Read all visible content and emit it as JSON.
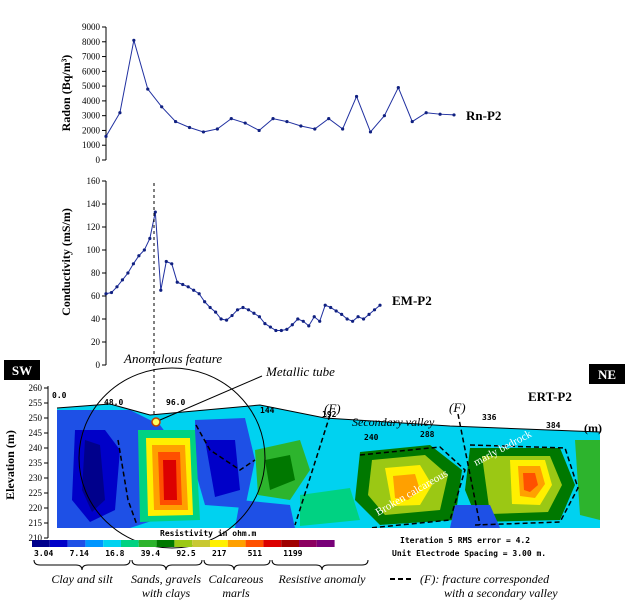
{
  "chart_data": [
    {
      "type": "line",
      "id": "radon",
      "series_label": "Rn-P2",
      "ylabel": "Radon (Bq/m³)",
      "ylim": [
        0,
        9000
      ],
      "yticks": [
        "0",
        "1000",
        "2000",
        "3000",
        "4000",
        "5000",
        "6000",
        "7000",
        "8000",
        "9000"
      ],
      "x": [
        0,
        4,
        8,
        12,
        16,
        20,
        24,
        28,
        32,
        36,
        40,
        44,
        48,
        52,
        56,
        60,
        64,
        68,
        72,
        76,
        80,
        84,
        88,
        92,
        96,
        100
      ],
      "values": [
        1600,
        3200,
        8100,
        4800,
        3600,
        2600,
        2200,
        1900,
        2100,
        2800,
        2500,
        2000,
        2800,
        2600,
        2300,
        2100,
        2800,
        2100,
        4300,
        1900,
        3000,
        4900,
        2600,
        3200,
        3100,
        3050
      ],
      "series": [
        {
          "values": [
            1600,
            3200,
            8100,
            4800,
            3600,
            2600,
            2200,
            1900,
            2100,
            2800,
            2500,
            2000,
            2800,
            2600,
            2300,
            2100,
            2800,
            2100,
            4300,
            1900,
            3000,
            4900,
            2600,
            3200,
            3100,
            3050
          ]
        }
      ]
    },
    {
      "type": "line",
      "id": "conductivity",
      "series_label": "EM-P2",
      "ylabel": "Conductivity  (mS/m)",
      "ylim": [
        0,
        160
      ],
      "yticks": [
        "0",
        "20",
        "40",
        "60",
        "80",
        "100",
        "120",
        "140",
        "160"
      ],
      "x": [
        0,
        4,
        8,
        12,
        16,
        20,
        24,
        28,
        32,
        36,
        40,
        44,
        48,
        52,
        56,
        60,
        64,
        68,
        72,
        76,
        80,
        84,
        88,
        92,
        96,
        100,
        104,
        108,
        112,
        116,
        120,
        124,
        128,
        132,
        136,
        140,
        144,
        148,
        152,
        156,
        160,
        164,
        168,
        172,
        176,
        180,
        184,
        188,
        192,
        196,
        200
      ],
      "values": [
        62,
        63,
        68,
        74,
        80,
        88,
        95,
        100,
        110,
        133,
        65,
        90,
        88,
        72,
        70,
        68,
        65,
        62,
        55,
        50,
        46,
        40,
        39,
        43,
        48,
        50,
        48,
        45,
        42,
        36,
        33,
        30,
        30,
        31,
        35,
        40,
        38,
        34,
        42,
        38,
        52,
        50,
        47,
        44,
        40,
        38,
        42,
        40,
        44,
        48,
        52
      ],
      "series": [
        {
          "values": [
            62,
            63,
            68,
            74,
            80,
            88,
            95,
            100,
            110,
            133,
            65,
            90,
            88,
            72,
            70,
            68,
            65,
            62,
            55,
            50,
            46,
            40,
            39,
            43,
            48,
            50,
            48,
            45,
            42,
            36,
            33,
            30,
            30,
            31,
            35,
            40,
            38,
            34,
            42,
            38,
            52,
            50,
            47,
            44,
            40,
            38,
            42,
            40,
            44,
            48,
            52
          ]
        }
      ]
    },
    {
      "type": "heatmap",
      "id": "ert",
      "section_label": "ERT-P2",
      "ylabel": "Elevation (m)",
      "yticks": [
        "260",
        "255",
        "250",
        "245",
        "240",
        "235",
        "230",
        "225",
        "220",
        "215",
        "210"
      ],
      "distance_labels": [
        "0.0",
        "48.0",
        "96.0",
        "144",
        "192",
        "240",
        "288",
        "336",
        "384"
      ],
      "distance_unit": "(m)",
      "scale_title": "Resistivity in ohm.m",
      "scale_colors": [
        "#00008c",
        "#0000c8",
        "#1e50e6",
        "#0096ff",
        "#00d2f0",
        "#00d282",
        "#2db42d",
        "#007800",
        "#9bc814",
        "#c8c832",
        "#fff000",
        "#ffa000",
        "#ff5000",
        "#dc0000",
        "#a00000",
        "#8c0060",
        "#780078"
      ],
      "scale_labels": [
        "3.04",
        "7.14",
        "16.8",
        "39.4",
        "92.5",
        "217",
        "511",
        "1199"
      ],
      "iteration_text": "Iteration 5 RMS error = 4.2",
      "spacing_text": "Unit Electrode Spacing = 3.00 m."
    }
  ],
  "annotations": {
    "sw": "SW",
    "ne": "NE",
    "anomalous": "Anomalous feature",
    "tube": "Metallic tube",
    "fracture1": "(F)",
    "fracture2": "(F)",
    "secondary_valley": "Secondary valley",
    "broken": "Broken calcareous",
    "marly": "marly bedrock"
  },
  "legend": {
    "clay": "Clay and silt",
    "sands1": "Sands, gravels",
    "sands2": "with clays",
    "calc1": "Calcareous",
    "calc2": "marls",
    "resist": "Resistive anomaly",
    "fracture_line1": "(F): fracture corresponded",
    "fracture_line2": "with a secondary valley"
  }
}
